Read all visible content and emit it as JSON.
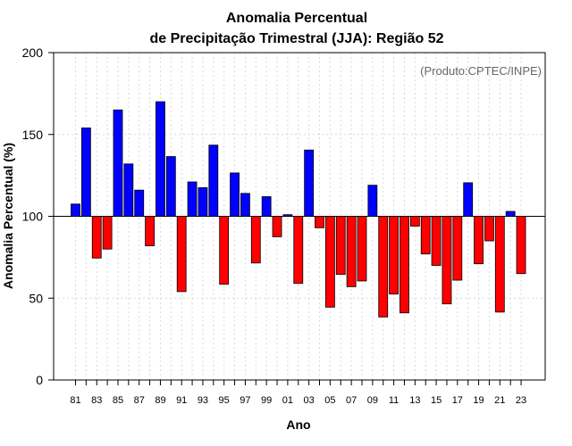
{
  "chart_data": {
    "type": "bar",
    "title": [
      "Anomalia Percentual",
      "de Precipitação Trimestral (JJA): Região 52"
    ],
    "source": "(Produto:CPTEC/INPE)",
    "xlabel": "Ano",
    "ylabel": "Anomalia Percentual (%)",
    "ylim": [
      0,
      200
    ],
    "yticks": [
      0,
      50,
      100,
      150,
      200
    ],
    "baseline": 100,
    "grid": true,
    "colors": {
      "above": "#0000ff",
      "below": "#ff0000",
      "baseline": "#000000",
      "grid": "#d9d9d9"
    },
    "categories": [
      "81",
      "82",
      "83",
      "84",
      "85",
      "86",
      "87",
      "88",
      "89",
      "90",
      "91",
      "92",
      "93",
      "94",
      "95",
      "96",
      "97",
      "98",
      "99",
      "00",
      "01",
      "02",
      "03",
      "04",
      "05",
      "06",
      "07",
      "08",
      "09",
      "10",
      "11",
      "12",
      "13",
      "14",
      "15",
      "16",
      "17",
      "18",
      "19",
      "20",
      "21",
      "22",
      "23"
    ],
    "xtick_labels": [
      "81",
      "83",
      "85",
      "87",
      "89",
      "91",
      "93",
      "95",
      "97",
      "99",
      "01",
      "03",
      "05",
      "07",
      "09",
      "11",
      "13",
      "15",
      "17",
      "19",
      "21",
      "23"
    ],
    "values": [
      107.5,
      154,
      74.5,
      80,
      165,
      132,
      116,
      82,
      170,
      136.5,
      54,
      121,
      117.5,
      143.5,
      58.5,
      126.5,
      114,
      71.5,
      112,
      87.5,
      101,
      59,
      140.5,
      93,
      44.5,
      64.5,
      57,
      60.5,
      119,
      38.5,
      52.5,
      41,
      94,
      77,
      70,
      46.5,
      61,
      120.5,
      71,
      85,
      41.5,
      103,
      65
    ]
  }
}
